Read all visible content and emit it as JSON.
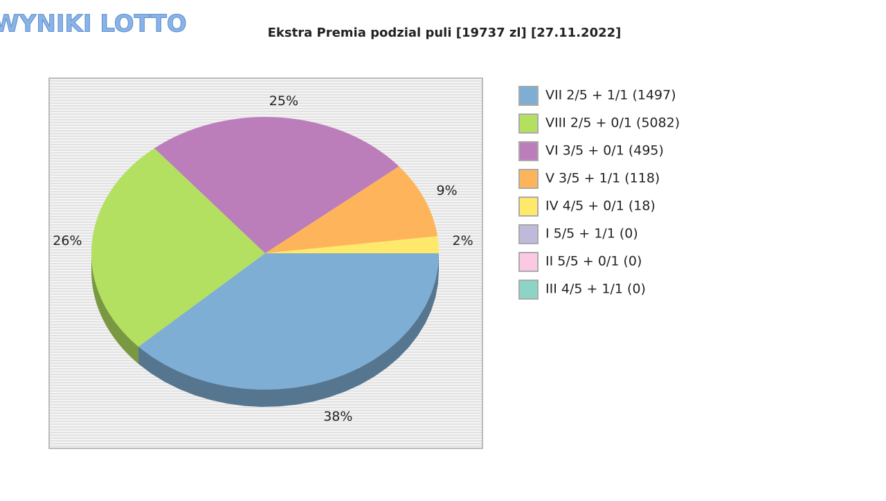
{
  "logo": "WYNIKI LOTTO",
  "chart_data": {
    "type": "pie",
    "title": "Ekstra Premia podzial puli [19737 zl] [27.11.2022]",
    "categories": [
      "VII 2/5 + 1/1 (1497)",
      "VIII 2/5 + 0/1 (5082)",
      "VI 3/5 + 0/1 (495)",
      "V 3/5 + 1/1 (118)",
      "IV 4/5 + 0/1 (18)",
      "I 5/5 + 1/1 (0)",
      "II 5/5 + 0/1 (0)",
      "III 4/5 + 1/1 (0)"
    ],
    "values": [
      38,
      26,
      25,
      9,
      2,
      0,
      0,
      0
    ],
    "value_labels": [
      "38%",
      "26%",
      "25%",
      "9%",
      "2%",
      null,
      null,
      null
    ],
    "colors": [
      "#7eaed4",
      "#b3e060",
      "#bc7dbb",
      "#feb45a",
      "#fee96a",
      "#c0b9db",
      "#fcc9e3",
      "#8dd4c6"
    ],
    "legend": "right"
  }
}
